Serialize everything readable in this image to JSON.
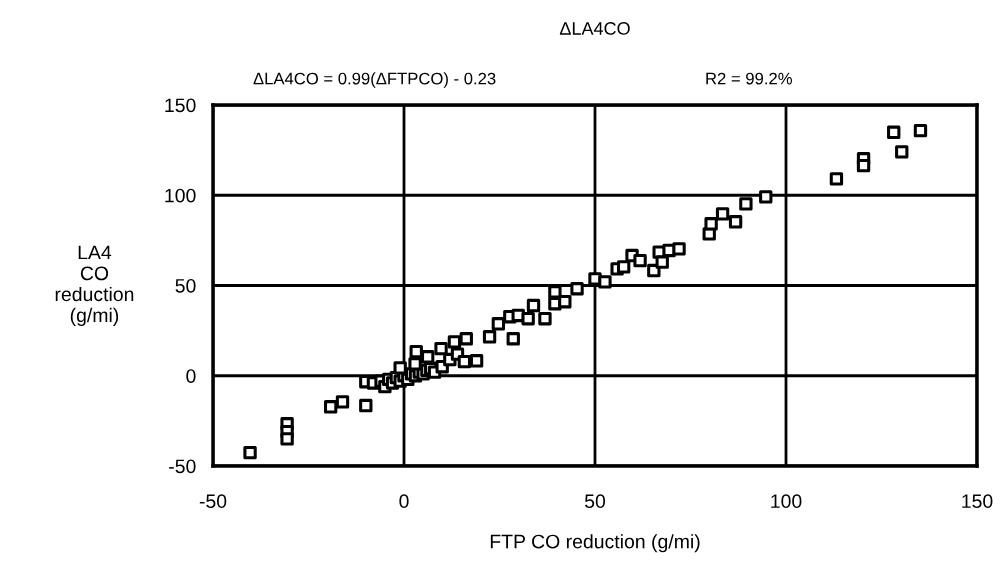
{
  "chart_data": {
    "type": "scatter",
    "title": "ΔLA4CO",
    "annotations": [
      "ΔLA4CO = 0.99(ΔFTPCO) - 0.23",
      "R2 = 99.2%"
    ],
    "xlabel": "FTP CO reduction (g/mi)",
    "ylabel": "LA4\nCO\nreduction\n(g/mi)",
    "xlim": [
      -50,
      150
    ],
    "ylim": [
      -50,
      150
    ],
    "xticks": [
      -50,
      0,
      50,
      100,
      150
    ],
    "yticks": [
      -50,
      0,
      50,
      100,
      150
    ],
    "grid": true,
    "marker": "square",
    "series": [
      {
        "color": "#000000",
        "x": [
          -40.3,
          -30.6,
          -30.6,
          -30.6,
          -19.2,
          -16.1,
          -10,
          -10,
          -8,
          -6,
          -5,
          -4,
          -3,
          -2,
          -1,
          0,
          1,
          2,
          3,
          4,
          5,
          6,
          7,
          8,
          10,
          12,
          14,
          -1,
          3.2,
          2.9,
          6.2,
          9.7,
          13.2,
          16.3,
          15.8,
          19,
          22.4,
          24.7,
          27.7,
          28.6,
          29.9,
          32.5,
          33.9,
          36.9,
          39.5,
          39.5,
          42.1,
          45.3,
          50,
          52.6,
          55.8,
          57.5,
          59.7,
          61.8,
          65.4,
          66.8,
          67.6,
          69.4,
          72,
          79.9,
          80.4,
          83.4,
          86.8,
          89.5,
          94.7,
          113.2,
          120.3,
          120.3,
          128.2,
          130.3,
          135.2
        ],
        "values": [
          -42.6,
          -26.6,
          -31,
          -35,
          -17.2,
          -14.5,
          -16.5,
          -3.3,
          -4,
          -3,
          -6,
          -2,
          -4,
          -1,
          -3,
          0,
          -2,
          1,
          0,
          2,
          1,
          3,
          4,
          2,
          5,
          9,
          12,
          4.4,
          13.3,
          6.6,
          10.5,
          15,
          18.8,
          20.5,
          7.8,
          8.3,
          21.6,
          28.8,
          32.7,
          20.5,
          33.4,
          31.6,
          38.9,
          31.6,
          46.5,
          39.9,
          41,
          48.2,
          53.7,
          52,
          59.2,
          60.3,
          66.6,
          63.8,
          58.3,
          68.5,
          63,
          69.4,
          70.3,
          78.6,
          84.2,
          89.7,
          85.3,
          95.2,
          99.1,
          109.1,
          120.2,
          116.4,
          134.9,
          124,
          135.8
        ]
      }
    ]
  }
}
